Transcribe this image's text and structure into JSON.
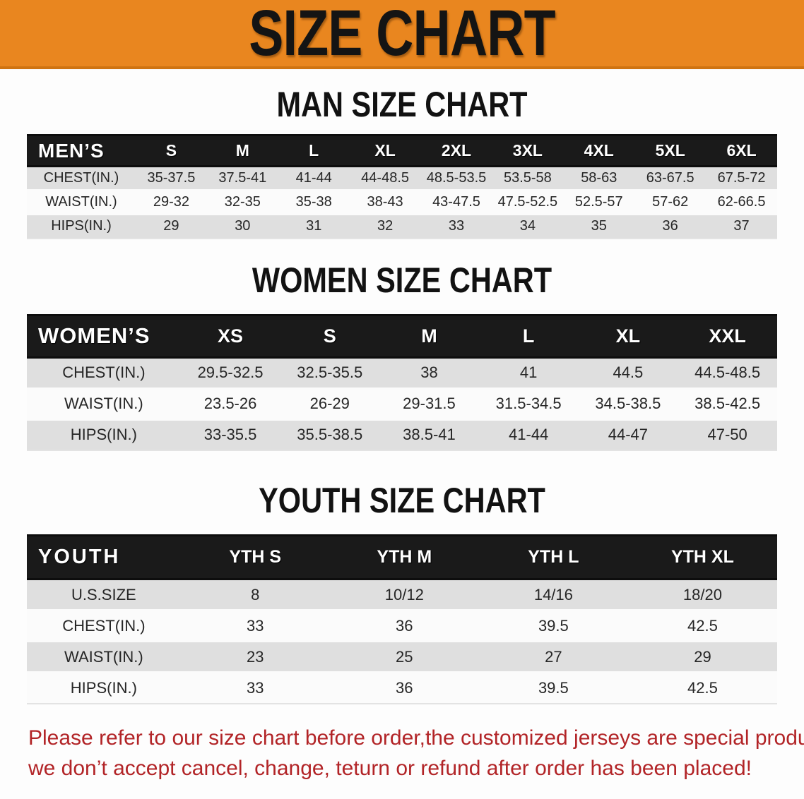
{
  "banner": {
    "title": "SIZE CHART"
  },
  "colors": {
    "banner_bg": "#E9861F",
    "banner_border": "#cf7310",
    "header_bar_bg": "#1a1a1a",
    "row_gray": "#dfdfdf",
    "row_white": "#fbfbfb",
    "disclaimer_red": "#b22427"
  },
  "sections": {
    "men": {
      "heading": "MAN SIZE CHART",
      "group_label": "MEN’S",
      "columns": [
        "S",
        "M",
        "L",
        "XL",
        "2XL",
        "3XL",
        "4XL",
        "5XL",
        "6XL"
      ],
      "rows": [
        {
          "label": "CHEST(IN.)",
          "values": [
            "35-37.5",
            "37.5-41",
            "41-44",
            "44-48.5",
            "48.5-53.5",
            "53.5-58",
            "58-63",
            "63-67.5",
            "67.5-72"
          ]
        },
        {
          "label": "WAIST(IN.)",
          "values": [
            "29-32",
            "32-35",
            "35-38",
            "38-43",
            "43-47.5",
            "47.5-52.5",
            "52.5-57",
            "57-62",
            "62-66.5"
          ]
        },
        {
          "label": "HIPS(IN.)",
          "values": [
            "29",
            "30",
            "31",
            "32",
            "33",
            "34",
            "35",
            "36",
            "37"
          ]
        }
      ]
    },
    "women": {
      "heading": "WOMEN SIZE CHART",
      "group_label": "WOMEN’S",
      "columns": [
        "XS",
        "S",
        "M",
        "L",
        "XL",
        "XXL"
      ],
      "rows": [
        {
          "label": "CHEST(IN.)",
          "values": [
            "29.5-32.5",
            "32.5-35.5",
            "38",
            "41",
            "44.5",
            "44.5-48.5"
          ]
        },
        {
          "label": "WAIST(IN.)",
          "values": [
            "23.5-26",
            "26-29",
            "29-31.5",
            "31.5-34.5",
            "34.5-38.5",
            "38.5-42.5"
          ]
        },
        {
          "label": "HIPS(IN.)",
          "values": [
            "33-35.5",
            "35.5-38.5",
            "38.5-41",
            "41-44",
            "44-47",
            "47-50"
          ]
        }
      ]
    },
    "youth": {
      "heading": "YOUTH SIZE CHART",
      "group_label": "YOUTH",
      "columns": [
        "YTH S",
        "YTH M",
        "YTH L",
        "YTH XL"
      ],
      "rows": [
        {
          "label": "U.S.SIZE",
          "values": [
            "8",
            "10/12",
            "14/16",
            "18/20"
          ]
        },
        {
          "label": "CHEST(IN.)",
          "values": [
            "33",
            "36",
            "39.5",
            "42.5"
          ]
        },
        {
          "label": "WAIST(IN.)",
          "values": [
            "23",
            "25",
            "27",
            "29"
          ]
        },
        {
          "label": "HIPS(IN.)",
          "values": [
            "33",
            "36",
            "39.5",
            "42.5"
          ]
        }
      ]
    }
  },
  "disclaimer": {
    "line1": "Please refer to our size chart before order,the customized jerseys are special products,",
    "line2": "we don’t accept cancel, change, teturn or refund after order has been placed!"
  }
}
